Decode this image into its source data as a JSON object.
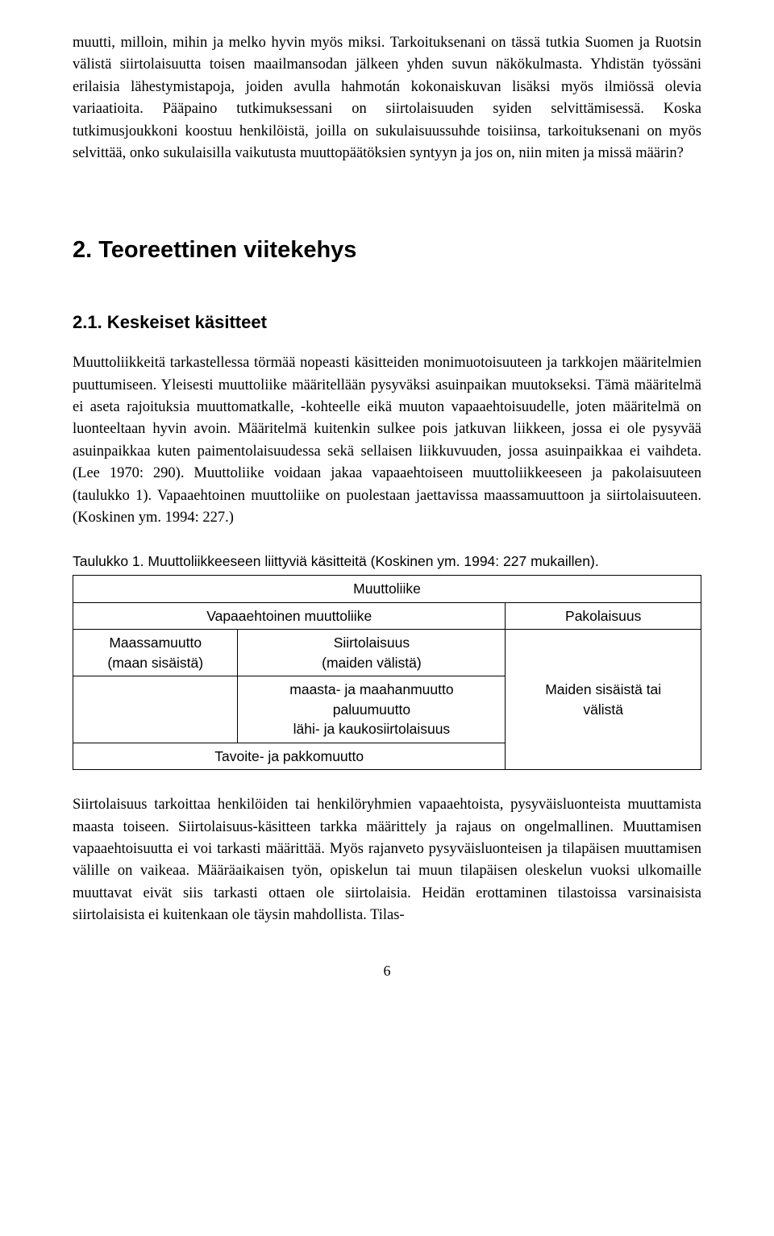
{
  "paragraphs": {
    "p1": "muutti, milloin, mihin ja melko hyvin myös miksi. Tarkoituksenani on tässä tutkia Suomen ja Ruotsin välistä siirtolaisuutta toisen maailmansodan jälkeen yhden suvun näkökulmasta. Yhdistän työssäni erilaisia lähestymistapoja, joiden avulla hahmotán kokonaiskuvan lisäksi myös ilmiössä olevia variaatioita. Pääpaino tutkimuksessani on siirtolaisuuden syiden selvittämisessä. Koska tutkimusjoukkoni koostuu henkilöistä, joilla on sukulaisuussuhde toisiinsa, tarkoituksenani on myös selvittää, onko sukulaisilla vaikutusta muuttopäätöksien syntyyn ja jos on, niin miten ja missä määrin?",
    "p2": "Muuttoliikkeitä tarkastellessa törmää nopeasti käsitteiden monimuotoisuuteen ja tarkkojen määritelmien puuttumiseen. Yleisesti muuttoliike määritellään pysyväksi asuinpaikan muutokseksi. Tämä määritelmä ei aseta rajoituksia muuttomatkalle, -kohteelle eikä muuton vapaaehtoisuudelle, joten määritelmä on luonteeltaan hyvin avoin. Määritelmä kuitenkin sulkee pois jatkuvan liikkeen, jossa ei ole pysyvää asuinpaikkaa kuten paimentolaisuudessa sekä sellaisen liikkuvuuden, jossa asuinpaikkaa ei vaihdeta. (Lee 1970: 290). Muuttoliike voidaan jakaa vapaaehtoiseen muuttoliikkeeseen ja pakolaisuuteen (taulukko 1). Vapaaehtoinen muuttoliike on puolestaan jaettavissa maassamuuttoon ja siirtolaisuuteen. (Koskinen ym. 1994: 227.)",
    "p3": "Siirtolaisuus tarkoittaa henkilöiden tai henkilöryhmien vapaaehtoista, pysyväisluonteista muuttamista maasta toiseen. Siirtolaisuus-käsitteen tarkka määrittely ja rajaus on ongelmallinen. Muuttamisen vapaaehtoisuutta ei voi tarkasti määrittää. Myös rajanveto pysyväisluonteisen ja tilapäisen muuttamisen välille on vaikeaa. Määräaikaisen työn, opiskelun tai muun tilapäisen oleskelun vuoksi ulkomaille muuttavat eivät siis tarkasti ottaen ole siirtolaisia. Heidän erottaminen tilastoissa varsinaisista siirtolaisista ei kuitenkaan ole täysin mahdollista. Tilas-"
  },
  "headings": {
    "h2": "2. Teoreettinen viitekehys",
    "h3": "2.1. Keskeiset käsitteet"
  },
  "table": {
    "caption": "Taulukko 1. Muuttoliikkeeseen liittyviä käsitteitä (Koskinen ym. 1994: 227 mukaillen).",
    "r1c1": "Muuttoliike",
    "r2c1": "Vapaaehtoinen muuttoliike",
    "r2c2": "Pakolaisuus",
    "r3c1a": "Maassamuutto",
    "r3c1b": "(maan sisäistä)",
    "r3c2a": "Siirtolaisuus",
    "r3c2b": "(maiden välistä)",
    "r3c3a": "Maiden sisäistä tai",
    "r3c3b": "välistä",
    "r4c2a": "maasta- ja maahanmuutto",
    "r4c2b": "paluumuutto",
    "r4c2c": "lähi- ja kaukosiirtolaisuus",
    "r5c1": "Tavoite- ja pakkomuutto"
  },
  "page_number": "6"
}
